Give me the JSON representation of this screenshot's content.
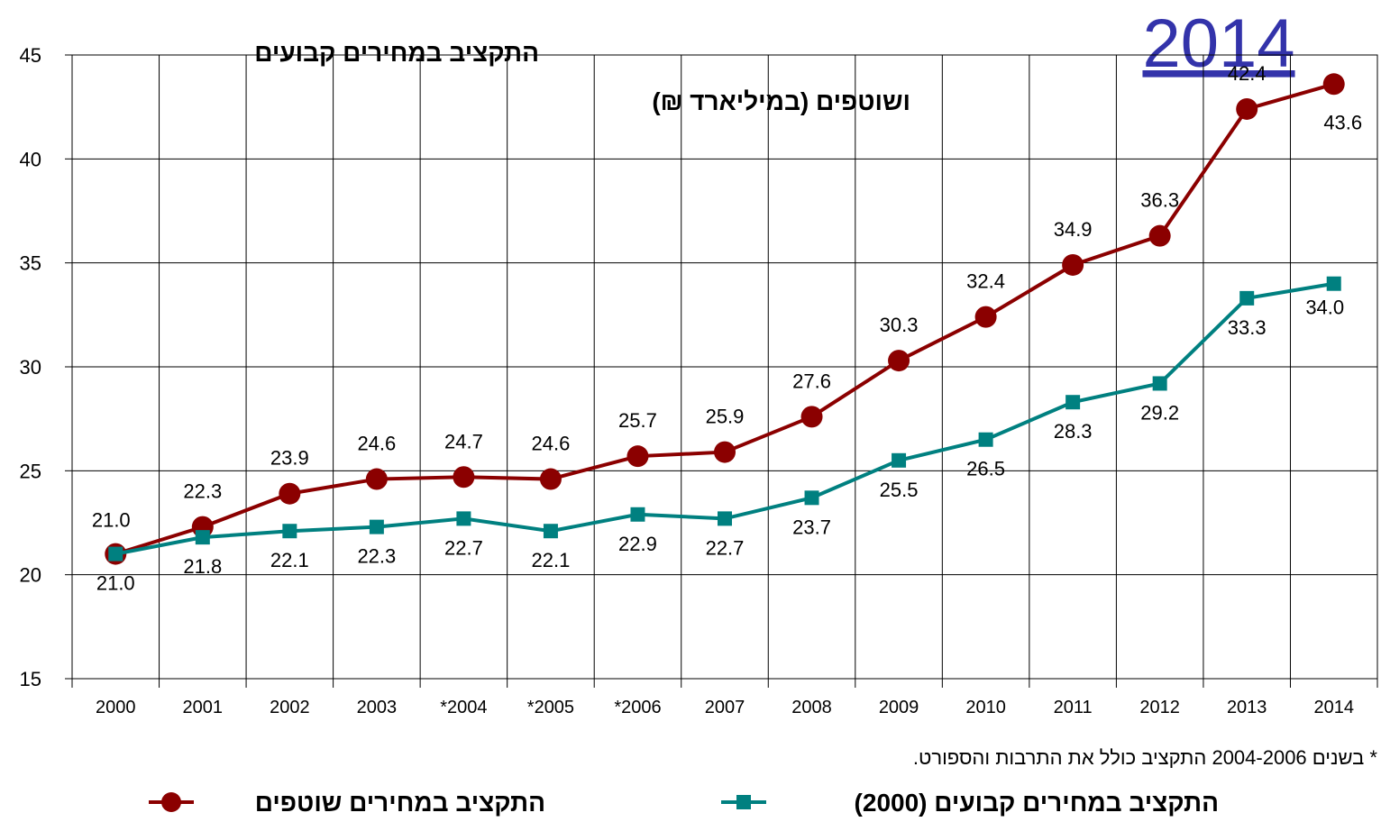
{
  "chart_data": {
    "type": "line",
    "title": "התקציב במחירים קבועים",
    "subtitle": "ושוטפים (במיליארד ₪)",
    "annotation": "2014",
    "footnote": "* בשנים 2004-2006 התקציב כולל את התרבות והספורט.",
    "categories": [
      "2000",
      "2001",
      "2002",
      "2003",
      "*2004",
      "*2005",
      "*2006",
      "2007",
      "2008",
      "2009",
      "2010",
      "2011",
      "2012",
      "2013",
      "2014"
    ],
    "series": [
      {
        "name": "התקציב במחירים שוטפים",
        "color": "#8b0000",
        "marker": "circle",
        "values": [
          21.0,
          22.3,
          23.9,
          24.6,
          24.7,
          24.6,
          25.7,
          25.9,
          27.6,
          30.3,
          32.4,
          34.9,
          36.3,
          42.4,
          43.6
        ],
        "value_labels": [
          "21.0",
          "22.3",
          "23.9",
          "24.6",
          "24.7",
          "24.6",
          "25.7",
          "25.9",
          "27.6",
          "30.3",
          "32.4",
          "34.9",
          "36.3",
          "42.4",
          "43.6"
        ]
      },
      {
        "name": "התקציב במחירים קבועים (2000)",
        "color": "#008080",
        "marker": "square",
        "values": [
          21.0,
          21.8,
          22.1,
          22.3,
          22.7,
          22.1,
          22.9,
          22.7,
          23.7,
          25.5,
          26.5,
          28.3,
          29.2,
          33.3,
          34.0
        ],
        "value_labels": [
          "21.0",
          "21.8",
          "22.1",
          "22.3",
          "22.7",
          "22.1",
          "22.9",
          "22.7",
          "23.7",
          "25.5",
          "26.5",
          "28.3",
          "29.2",
          "33.3",
          "34.0"
        ]
      }
    ],
    "ylim": [
      15,
      45
    ],
    "yticks": [
      15,
      20,
      25,
      30,
      35,
      40,
      45
    ],
    "grid": true
  }
}
